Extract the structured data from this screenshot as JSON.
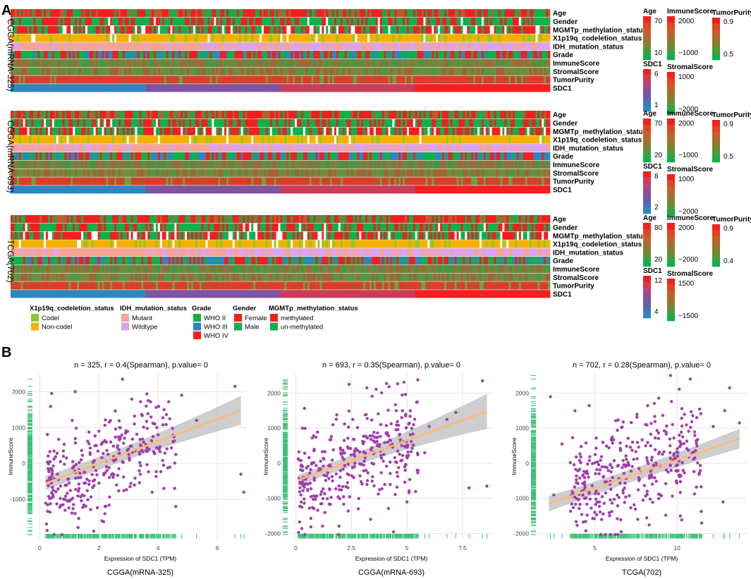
{
  "panel_labels": {
    "a": "A",
    "b": "B"
  },
  "heatmap_rows": [
    "Age",
    "Gender",
    "MGMTp_methylation_status",
    "X1p19q_codeletion_status",
    "IDH_mutation_status",
    "Grade",
    "ImmuneScore",
    "StromalScore",
    "TumorPurity",
    "SDC1"
  ],
  "colors": {
    "red": "#f31f1f",
    "green": "#10b04a",
    "purple": "#a23dac",
    "orange": "#f5b000",
    "pink": "#f5a394",
    "lilac": "#d9a3f2",
    "blue": "#2e86c1",
    "darkblue": "#1f5d95",
    "fit": "#ffb877",
    "band": "#bdbdbd"
  },
  "cohorts": [
    {
      "label": "CGGA(mRNA-325)",
      "n": 325,
      "scales": {
        "age_title": "Age",
        "age_max": "70",
        "age_min": "10",
        "immune_title": "ImmuneScore",
        "immune_max": "2000",
        "immune_min": "−1000",
        "purity_title": "TumorPurity",
        "purity_max": "0.9",
        "purity_min": "0.5",
        "sdc1_title": "SDC1",
        "sdc1_max": "6",
        "sdc1_min": "1",
        "stromal_title": "StromalScore",
        "stromal_max": "1000",
        "stromal_min": "−2000"
      }
    },
    {
      "label": "CGGA(mRNA-693)",
      "n": 693,
      "scales": {
        "age_title": "Age",
        "age_max": "70",
        "age_min": "20",
        "immune_title": "ImmuneScore",
        "immune_max": "2000",
        "immune_min": "−1000",
        "purity_title": "TumorPurity",
        "purity_max": "0.9",
        "purity_min": "0.5",
        "sdc1_title": "SDC1",
        "sdc1_max": "8",
        "sdc1_min": "2",
        "stromal_title": "StromalScore",
        "stromal_max": "1000",
        "stromal_min": "−2000"
      }
    },
    {
      "label": "TCGA(702)",
      "n": 702,
      "scales": {
        "age_title": "Age",
        "age_max": "80",
        "age_min": "20",
        "immune_title": "ImmuneScore",
        "immune_max": "2000",
        "immune_min": "−2000",
        "purity_title": "TumorPurity",
        "purity_max": "0.9",
        "purity_min": "0.4",
        "sdc1_title": "SDC1",
        "sdc1_max": "12",
        "sdc1_min": "4",
        "stromal_title": "StromalScore",
        "stromal_max": "1500",
        "stromal_min": "−1500"
      }
    }
  ],
  "legends": [
    {
      "title": "X1p19q_codeletion_status",
      "items": [
        {
          "label": "Codel",
          "color": "#8ac926"
        },
        {
          "label": "Non-codel",
          "color": "#f5b000"
        }
      ]
    },
    {
      "title": "IDH_mutation_status",
      "items": [
        {
          "label": "Mutant",
          "color": "#f5a394"
        },
        {
          "label": "Wildtype",
          "color": "#d9a3f2"
        }
      ]
    },
    {
      "title": "Grade",
      "items": [
        {
          "label": "WHO II",
          "color": "#10b04a"
        },
        {
          "label": "WHO III",
          "color": "#2e86c1"
        },
        {
          "label": "WHO IV",
          "color": "#f31f1f"
        }
      ]
    },
    {
      "title": "Gender",
      "items": [
        {
          "label": "Female",
          "color": "#f31f1f"
        },
        {
          "label": "Male",
          "color": "#10b04a"
        }
      ]
    },
    {
      "title": "MGMTp_methylation_status",
      "items": [
        {
          "label": "methylated",
          "color": "#f31f1f"
        },
        {
          "label": "un-methylated",
          "color": "#10b04a"
        }
      ]
    }
  ],
  "chart_data": [
    {
      "type": "scatter",
      "title": "n = 325, r = 0.4(Spearman), p.value= 0",
      "xlabel": "Expression of SDC1 (TPM)",
      "ylabel": "ImmuneScore",
      "caption": "CGGA(mRNA-325)",
      "xlim": [
        -0.2,
        7.0
      ],
      "ylim": [
        -2100,
        2500
      ],
      "xticks": [
        0,
        2,
        4,
        6
      ],
      "yticks": [
        -1000,
        0,
        1000,
        2000
      ],
      "fit": {
        "x": [
          0.2,
          6.8
        ],
        "y": [
          -550,
          1480
        ],
        "band_lo": 200,
        "band_hi": 400
      },
      "points": [
        [
          0.4,
          -820
        ],
        [
          0.6,
          -300
        ],
        [
          0.8,
          200
        ],
        [
          1.0,
          -1050
        ],
        [
          1.1,
          1200
        ],
        [
          1.3,
          -400
        ],
        [
          1.5,
          -900
        ],
        [
          1.2,
          2000
        ],
        [
          1.7,
          300
        ],
        [
          1.9,
          -200
        ],
        [
          2.0,
          900
        ],
        [
          2.2,
          -1400
        ],
        [
          2.4,
          600
        ],
        [
          2.6,
          -600
        ],
        [
          2.8,
          2350
        ],
        [
          3.0,
          400
        ],
        [
          3.2,
          1100
        ],
        [
          3.4,
          -300
        ],
        [
          3.6,
          1600
        ],
        [
          3.8,
          -800
        ],
        [
          4.0,
          800
        ],
        [
          4.2,
          1500
        ],
        [
          4.4,
          -100
        ],
        [
          4.6,
          -1200
        ],
        [
          4.8,
          1900
        ],
        [
          5.3,
          1200
        ],
        [
          6.6,
          2150
        ],
        [
          6.8,
          -300
        ],
        [
          6.9,
          -800
        ],
        [
          2.1,
          -1600
        ],
        [
          1.4,
          100
        ],
        [
          2.7,
          1000
        ]
      ],
      "cloud": {
        "n": 325,
        "xmin": 0.2,
        "xmax": 4.6,
        "mean_at_min": -600,
        "slope": 300,
        "sd": 700,
        "seed": 11
      }
    },
    {
      "type": "scatter",
      "title": "n = 693, r = 0.35(Spearman), p.value= 0",
      "xlabel": "Expression of SDC1 (TPM)",
      "ylabel": "ImmuneScore",
      "caption": "CGGA(mRNA-693)",
      "xlim": [
        -0.3,
        8.9
      ],
      "ylim": [
        -2150,
        2550
      ],
      "xticks": [
        0.0,
        2.5,
        5.0,
        7.5
      ],
      "yticks": [
        -2000,
        -1000,
        0,
        1000,
        2000
      ],
      "fit": {
        "x": [
          0.1,
          8.6
        ],
        "y": [
          -480,
          1480
        ],
        "band_lo": 150,
        "band_hi": 500
      },
      "points": [
        [
          4.4,
          -1950
        ],
        [
          5.0,
          -1100
        ],
        [
          5.3,
          1100
        ],
        [
          6.0,
          1050
        ],
        [
          6.8,
          1250
        ],
        [
          7.2,
          1450
        ],
        [
          7.8,
          -700
        ],
        [
          8.4,
          2350
        ],
        [
          8.6,
          -650
        ],
        [
          5.8,
          300
        ],
        [
          4.8,
          1500
        ],
        [
          5.5,
          -200
        ],
        [
          3.2,
          2150
        ],
        [
          2.4,
          2250
        ]
      ],
      "cloud": {
        "n": 693,
        "xmin": 0.1,
        "xmax": 5.5,
        "mean_at_min": -500,
        "slope": 240,
        "sd": 700,
        "seed": 23
      }
    },
    {
      "type": "scatter",
      "title": "n = 702, r = 0.28(Spearman), p.value= 0",
      "xlabel": "Expression of SDC1 (TPM)",
      "ylabel": "ImmuneScore",
      "caption": "TCGA(702)",
      "xlim": [
        1.5,
        14.2
      ],
      "ylim": [
        -2150,
        2550
      ],
      "xticks": [
        5,
        10
      ],
      "yticks": [
        -2000,
        -1000,
        0,
        1000,
        2000
      ],
      "fit": {
        "x": [
          2.2,
          13.8
        ],
        "y": [
          -1150,
          700
        ],
        "band_lo": 220,
        "band_hi": 280
      },
      "points": [
        [
          2.3,
          1900
        ],
        [
          2.5,
          -900
        ],
        [
          3.0,
          550
        ],
        [
          13.2,
          2150
        ],
        [
          13.8,
          1150
        ],
        [
          12.8,
          -1100
        ],
        [
          11.5,
          -1700
        ],
        [
          10.8,
          2400
        ],
        [
          9.6,
          2500
        ],
        [
          11.2,
          1300
        ],
        [
          12.2,
          1050
        ],
        [
          12.9,
          1500
        ],
        [
          10.2,
          -1500
        ]
      ],
      "cloud": {
        "n": 702,
        "xmin": 3.5,
        "xmax": 11.5,
        "mean_at_min": -850,
        "slope": 160,
        "sd": 760,
        "seed": 37
      }
    }
  ]
}
